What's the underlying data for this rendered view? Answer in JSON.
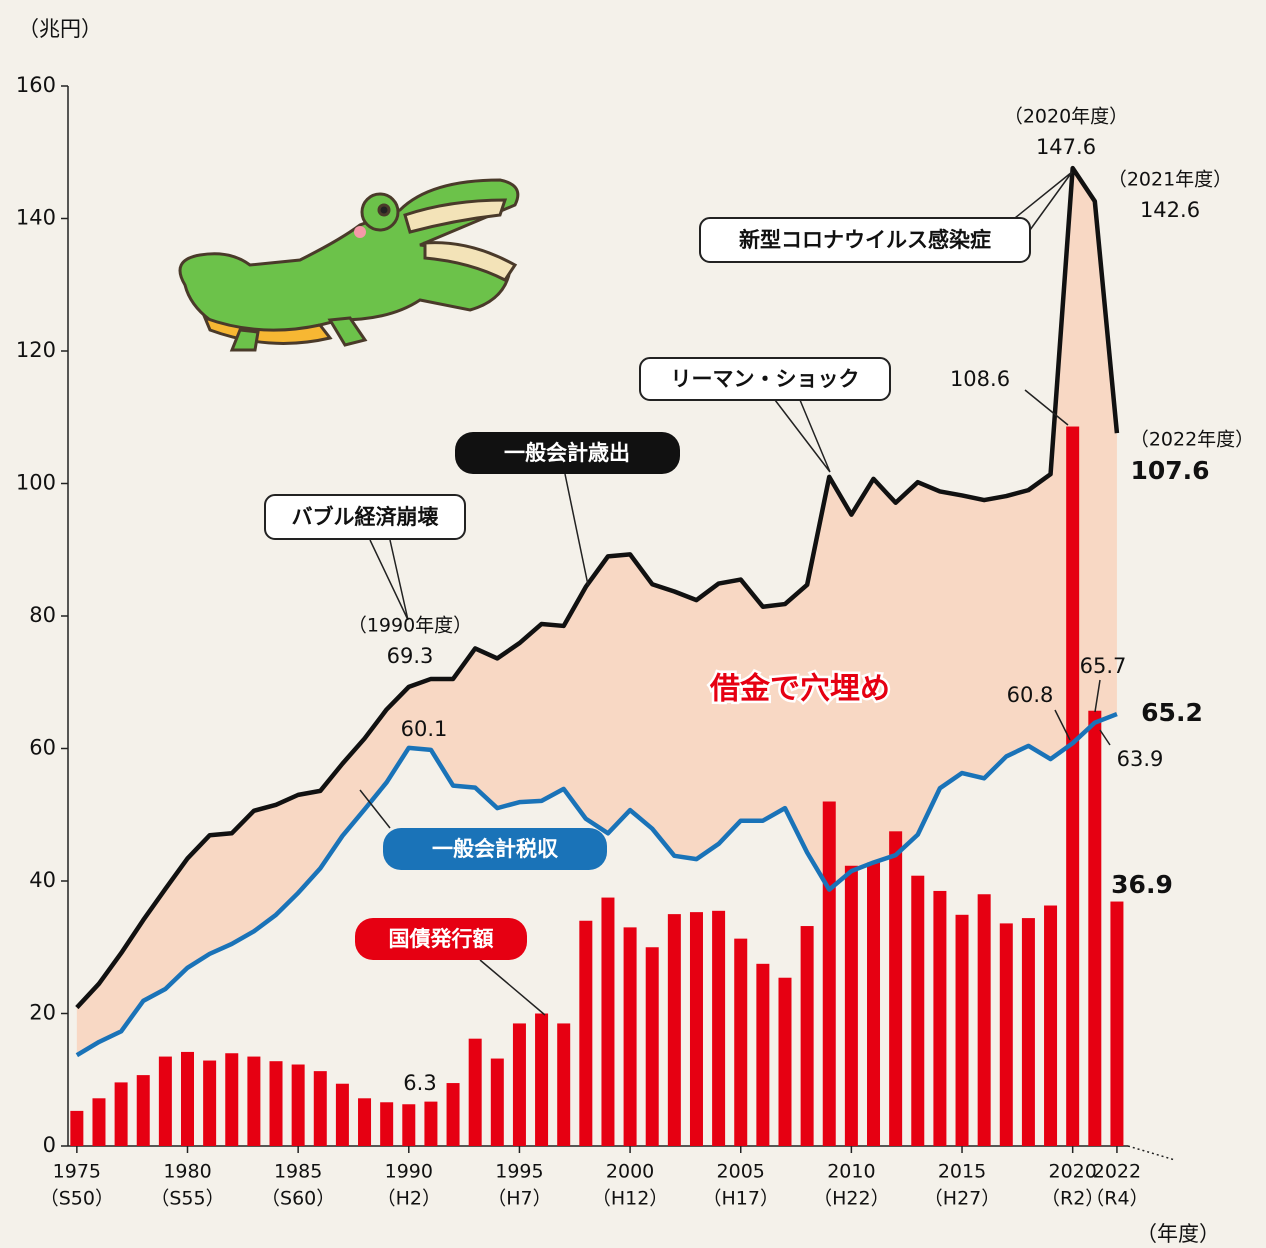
{
  "chart_data": {
    "type": "combo",
    "y_unit_label": "（兆円）",
    "x_unit_label": "（年度）",
    "x": [
      1975,
      1976,
      1977,
      1978,
      1979,
      1980,
      1981,
      1982,
      1983,
      1984,
      1985,
      1986,
      1987,
      1988,
      1989,
      1990,
      1991,
      1992,
      1993,
      1994,
      1995,
      1996,
      1997,
      1998,
      1999,
      2000,
      2001,
      2002,
      2003,
      2004,
      2005,
      2006,
      2007,
      2008,
      2009,
      2010,
      2011,
      2012,
      2013,
      2014,
      2015,
      2016,
      2017,
      2018,
      2019,
      2020,
      2021,
      2022
    ],
    "xlim": [
      1974.6,
      2022.5
    ],
    "xticks": [
      1975,
      1980,
      1985,
      1990,
      1995,
      2000,
      2005,
      2010,
      2015,
      2020,
      2022
    ],
    "xtick_era_labels": [
      "（S50）",
      "（S55）",
      "（S60）",
      "（H2）",
      "（H7）",
      "（H12）",
      "（H17）",
      "（H22）",
      "（H27）",
      "（R2）",
      "（R4）"
    ],
    "ylim": [
      0,
      160
    ],
    "yticks": [
      0,
      20,
      40,
      60,
      80,
      100,
      120,
      140,
      160
    ],
    "series": [
      {
        "name": "一般会計歳出",
        "type": "line",
        "color": "#111111",
        "values": [
          20.9,
          24.5,
          29.1,
          34.1,
          38.8,
          43.4,
          46.9,
          47.2,
          50.6,
          51.5,
          53.0,
          53.6,
          57.7,
          61.5,
          65.9,
          69.3,
          70.5,
          70.5,
          75.1,
          73.6,
          75.9,
          78.8,
          78.5,
          84.4,
          89.0,
          89.3,
          84.8,
          83.7,
          82.4,
          84.9,
          85.5,
          81.4,
          81.8,
          84.7,
          101.0,
          95.3,
          100.7,
          97.1,
          100.2,
          98.8,
          98.2,
          97.5,
          98.1,
          99.0,
          101.4,
          147.6,
          142.6,
          107.6
        ]
      },
      {
        "name": "一般会計税収",
        "type": "line",
        "color": "#1a73b8",
        "values": [
          13.7,
          15.7,
          17.3,
          21.9,
          23.7,
          26.9,
          29.0,
          30.5,
          32.4,
          34.9,
          38.2,
          41.9,
          46.8,
          50.8,
          54.9,
          60.1,
          59.8,
          54.4,
          54.1,
          51.0,
          51.9,
          52.1,
          53.9,
          49.4,
          47.2,
          50.7,
          47.9,
          43.8,
          43.3,
          45.6,
          49.1,
          49.1,
          51.0,
          44.3,
          38.7,
          41.5,
          42.8,
          43.9,
          47.0,
          54.0,
          56.3,
          55.5,
          58.8,
          60.4,
          58.4,
          60.8,
          63.9,
          65.2
        ]
      },
      {
        "name": "国債発行額",
        "type": "bar",
        "color": "#e60012",
        "values": [
          5.3,
          7.2,
          9.6,
          10.7,
          13.5,
          14.2,
          12.9,
          14.0,
          13.5,
          12.8,
          12.3,
          11.3,
          9.4,
          7.2,
          6.6,
          6.3,
          6.7,
          9.5,
          16.2,
          13.2,
          18.5,
          20.0,
          18.5,
          34.0,
          37.5,
          33.0,
          30.0,
          35.0,
          35.3,
          35.5,
          31.3,
          27.5,
          25.4,
          33.2,
          52.0,
          42.3,
          42.8,
          47.5,
          40.8,
          38.5,
          34.9,
          38.0,
          33.6,
          34.4,
          36.3,
          108.6,
          65.7,
          36.9
        ]
      }
    ],
    "annotations": {
      "bubble": "バブル経済崩壊",
      "lehman": "リーマン・ショック",
      "covid": "新型コロナウイルス感染症",
      "gap": "借金で穴埋め",
      "fy1990": "（1990年度）",
      "fy2020": "（2020年度）",
      "fy2021": "（2021年度）",
      "fy2022": "（2022年度）"
    }
  }
}
